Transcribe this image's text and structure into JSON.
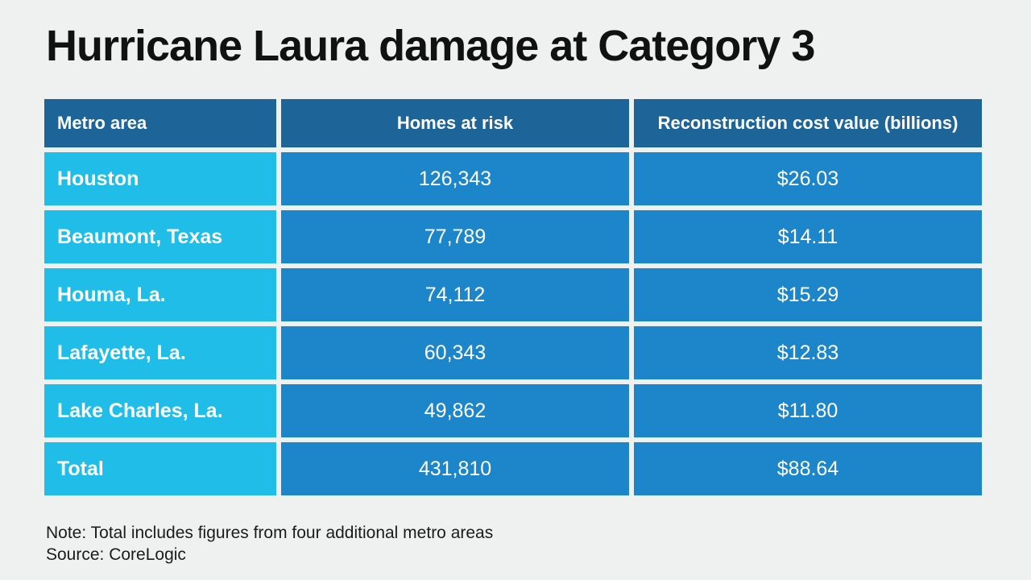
{
  "title": "Hurricane Laura damage at Category 3",
  "note": "Note: Total includes figures from four additional metro areas",
  "source": "Source: CoreLogic",
  "colors": {
    "background": "#eff1f1",
    "header_blue": "#1d6598",
    "metro_cyan": "#20bde9",
    "value_blue": "#1d85ca",
    "cell_text": "#ffffff",
    "title_text": "#111111",
    "footnote_text": "#1b1b1b"
  },
  "table": {
    "headers": [
      "Metro area",
      "Homes at risk",
      "Reconstruction cost value (billions)"
    ],
    "rows": [
      {
        "metro": "Houston",
        "homes": "126,343",
        "cost": "$26.03"
      },
      {
        "metro": "Beaumont, Texas",
        "homes": "77,789",
        "cost": "$14.11"
      },
      {
        "metro": "Houma, La.",
        "homes": "74,112",
        "cost": "$15.29"
      },
      {
        "metro": "Lafayette, La.",
        "homes": "60,343",
        "cost": "$12.83"
      },
      {
        "metro": "Lake Charles, La.",
        "homes": "49,862",
        "cost": "$11.80"
      },
      {
        "metro": "Total",
        "homes": "431,810",
        "cost": "$88.64"
      }
    ]
  },
  "chart_data": {
    "type": "table",
    "title": "Hurricane Laura damage at Category 3",
    "columns": [
      "Metro area",
      "Homes at risk",
      "Reconstruction cost value (billions)"
    ],
    "rows": [
      [
        "Houston",
        "126,343",
        "$26.03"
      ],
      [
        "Beaumont, Texas",
        "77,789",
        "$14.11"
      ],
      [
        "Houma, La.",
        "74,112",
        "$15.29"
      ],
      [
        "Lafayette, La.",
        "60,343",
        "$12.83"
      ],
      [
        "Lake Charles, La.",
        "49,862",
        "$11.80"
      ],
      [
        "Total",
        "431,810",
        "$88.64"
      ]
    ],
    "homes_at_risk_values": [
      126343,
      77789,
      74112,
      60343,
      49862,
      431810
    ],
    "reconstruction_cost_billions": [
      26.03,
      14.11,
      15.29,
      12.83,
      11.8,
      88.64
    ],
    "note": "Note: Total includes figures from four additional metro areas",
    "source": "CoreLogic"
  }
}
